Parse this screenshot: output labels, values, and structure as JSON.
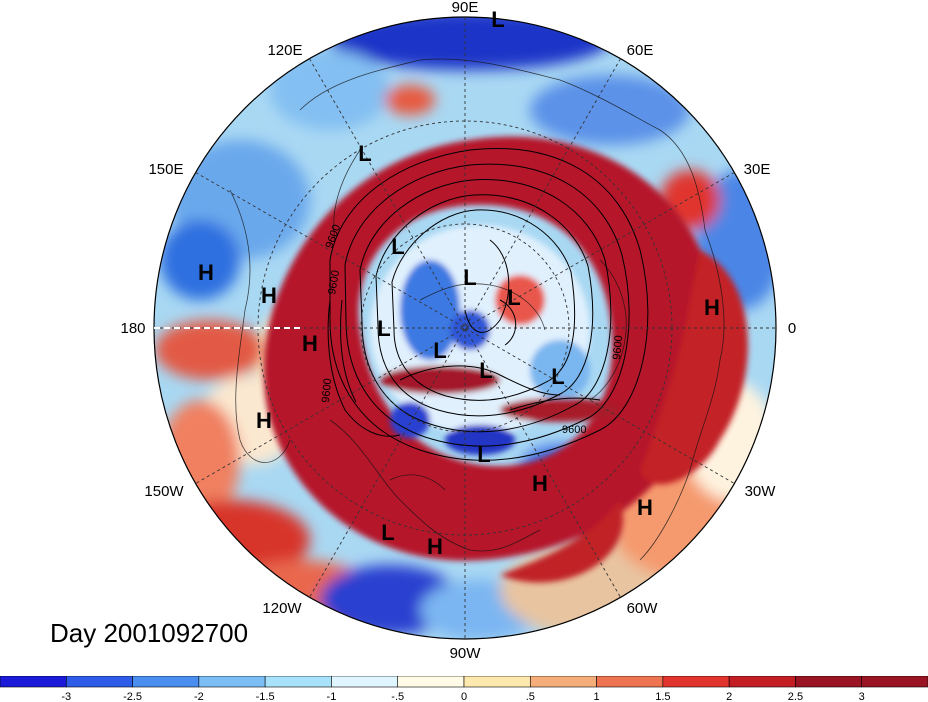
{
  "title": "Day 2001092700",
  "longitude_labels": [
    "90E",
    "60E",
    "30E",
    "0",
    "30W",
    "60W",
    "90W",
    "120W",
    "150W",
    "180",
    "150E",
    "120E"
  ],
  "pressure_systems": [
    {
      "type": "L"
    },
    {
      "type": "L"
    },
    {
      "type": "L"
    },
    {
      "type": "L"
    },
    {
      "type": "L"
    },
    {
      "type": "L"
    },
    {
      "type": "L"
    },
    {
      "type": "L"
    },
    {
      "type": "L"
    },
    {
      "type": "L"
    },
    {
      "type": "L"
    },
    {
      "type": "H"
    },
    {
      "type": "H"
    },
    {
      "type": "H"
    },
    {
      "type": "H"
    },
    {
      "type": "H"
    },
    {
      "type": "H"
    },
    {
      "type": "H"
    },
    {
      "type": "H"
    }
  ],
  "contour_labels": [
    "9600",
    "9600",
    "9600",
    "9600",
    "9600"
  ],
  "colorbar": {
    "colors": [
      "#1a1ad8",
      "#2e5be8",
      "#4a8ef0",
      "#7bbdf5",
      "#a8e2fa",
      "#dff5ff",
      "#fffbe6",
      "#fde8ad",
      "#f5ae7a",
      "#ee7451",
      "#e0342d",
      "#c41e25",
      "#9a1423"
    ],
    "tick_labels": [
      "-3",
      "-2.5",
      "-2",
      "-1.5",
      "-1",
      "-.5",
      "0",
      ".5",
      "1",
      "1.5",
      "2",
      "2.5",
      "3"
    ]
  }
}
